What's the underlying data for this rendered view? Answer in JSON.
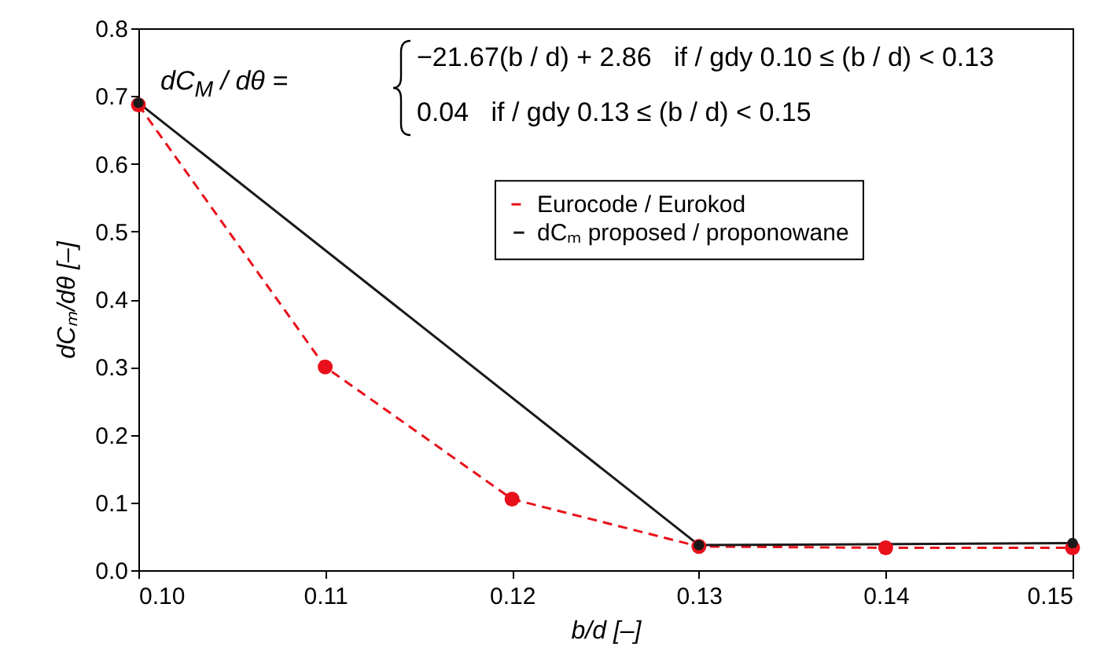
{
  "chart_data": {
    "type": "line",
    "xlabel": "b/d [–]",
    "ylabel": "dCₘ/dθ [–]",
    "x": [
      0.1,
      0.11,
      0.12,
      0.13,
      0.14,
      0.15
    ],
    "series": [
      {
        "name": "Eurocode / Eurokod",
        "color": "#e8101a",
        "line_style": "dashed",
        "values": [
          0.687,
          0.3,
          0.105,
          0.035,
          0.033,
          0.033
        ]
      },
      {
        "name": "dCₘ proposed / proponowane",
        "color": "#1a1a1a",
        "line_style": "solid",
        "x": [
          0.1,
          0.13,
          0.15
        ],
        "values": [
          0.69,
          0.037,
          0.04
        ]
      }
    ],
    "xlim": [
      0.1,
      0.15
    ],
    "xticks": [
      {
        "value": 0.1,
        "label": "0.10"
      },
      {
        "value": 0.11,
        "label": "0.11"
      },
      {
        "value": 0.12,
        "label": "0.12"
      },
      {
        "value": 0.13,
        "label": "0.13"
      },
      {
        "value": 0.14,
        "label": "0.14"
      },
      {
        "value": 0.15,
        "label": "0.15"
      }
    ],
    "ylim": [
      0,
      0.8
    ],
    "yticks": [
      {
        "value": 0,
        "label": "0.0"
      },
      {
        "value": 0.1,
        "label": "0.1"
      },
      {
        "value": 0.2,
        "label": "0.2"
      },
      {
        "value": 0.3,
        "label": "0.3"
      },
      {
        "value": 0.4,
        "label": "0.4"
      },
      {
        "value": 0.5,
        "label": "0.5"
      },
      {
        "value": 0.6,
        "label": "0.6"
      },
      {
        "value": 0.7,
        "label": "0.7"
      },
      {
        "value": 0.8,
        "label": "0.8"
      }
    ],
    "marker": "circle",
    "grid": false,
    "legend": "top right",
    "annotations": [
      "dC$_{M}$ / dθ =",
      "−21.67(b / d) + 2.86   if / gdy 0.10 ≤ (b / d) < 0.13",
      "0.04   if / gdy 0.13 ≤ (b / d) < 0.15"
    ]
  }
}
